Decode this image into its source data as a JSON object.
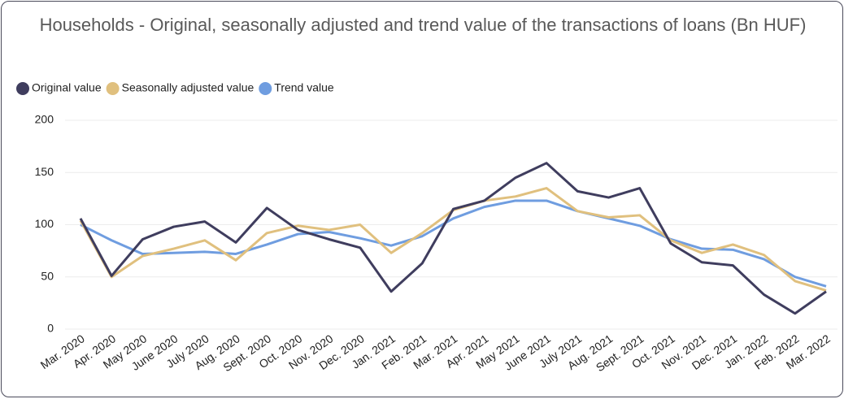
{
  "chart_data": {
    "type": "line",
    "title": "Households - Original, seasonally adjusted and trend value of the transactions of loans (Bn HUF)",
    "categories": [
      "Mar. 2020",
      "Apr. 2020",
      "May 2020",
      "June 2020",
      "July 2020",
      "Aug. 2020",
      "Sept. 2020",
      "Oct. 2020",
      "Nov. 2020",
      "Dec. 2020",
      "Jan. 2021",
      "Feb. 2021",
      "Mar. 2021",
      "Apr. 2021",
      "May 2021",
      "June 2021",
      "July 2021",
      "Aug. 2021",
      "Sept. 2021",
      "Oct. 2021",
      "Nov. 2021",
      "Dec. 2021",
      "Jan. 2022",
      "Feb. 2022",
      "Mar. 2022"
    ],
    "series": [
      {
        "name": "Original value",
        "color": "#3f3d5e",
        "values": [
          106,
          51,
          86,
          98,
          103,
          83,
          116,
          95,
          86,
          78,
          36,
          63,
          115,
          123,
          145,
          159,
          132,
          126,
          135,
          82,
          64,
          61,
          33,
          15,
          36
        ]
      },
      {
        "name": "Seasonally adjusted value",
        "color": "#e0c07e",
        "values": [
          104,
          50,
          70,
          77,
          85,
          66,
          92,
          99,
          95,
          100,
          73,
          92,
          114,
          123,
          127,
          135,
          113,
          107,
          109,
          85,
          73,
          81,
          71,
          46,
          37
        ]
      },
      {
        "name": "Trend value",
        "color": "#6f9de0",
        "values": [
          100,
          85,
          72,
          73,
          74,
          72,
          81,
          91,
          93,
          87,
          80,
          89,
          106,
          117,
          123,
          123,
          113,
          106,
          99,
          86,
          77,
          76,
          67,
          50,
          41
        ]
      }
    ],
    "ylim": [
      0,
      200
    ],
    "yticks": [
      0,
      50,
      100,
      150,
      200
    ],
    "grid": true,
    "legend": "top-left"
  }
}
